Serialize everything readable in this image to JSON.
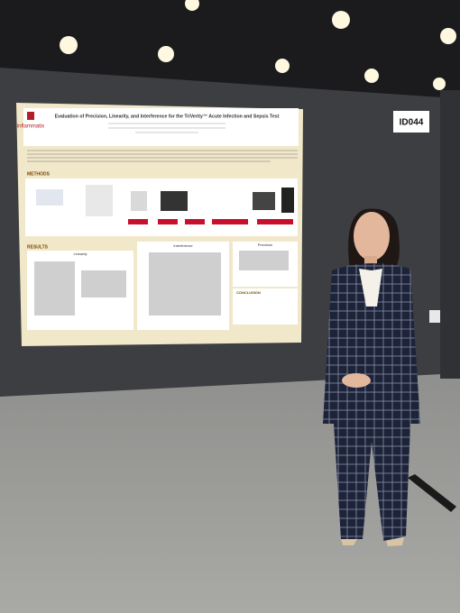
{
  "booth_label": "ID044",
  "poster": {
    "logo": "inflammatix",
    "title": "Evaluation of Precision, Linearity, and Interference for the TriVerity™ Acute Infection and Sepsis Test",
    "sections": {
      "methods": "METHODS",
      "results": "RESULTS",
      "conclusion": "CONCLUSION"
    },
    "results_panels": [
      "Linearity",
      "Interference",
      "Precision"
    ]
  }
}
